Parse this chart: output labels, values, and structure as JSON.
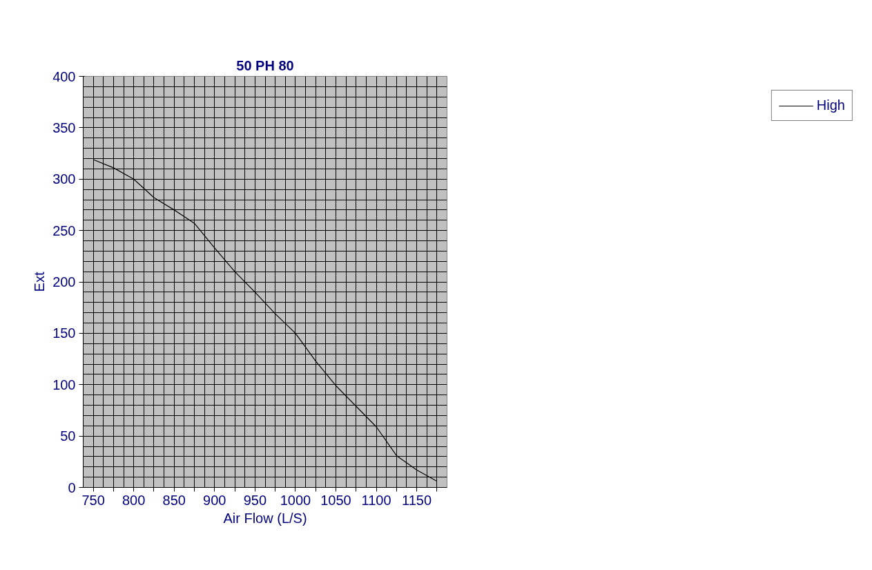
{
  "chart_data": {
    "type": "line",
    "title": "50 PH 80",
    "xlabel": "Air Flow (L/S)",
    "ylabel": "Ext",
    "categories": [
      "750",
      null,
      "800",
      null,
      "850",
      null,
      "900",
      null,
      "950",
      null,
      "1000",
      null,
      "1050",
      null,
      "1100",
      null,
      "1150",
      null
    ],
    "series": [
      {
        "name": "High",
        "color": "#000000",
        "values": [
          319,
          311,
          300,
          282,
          270,
          257,
          233,
          210,
          190,
          169,
          150,
          123,
          99,
          79,
          59,
          31,
          17,
          6
        ]
      }
    ],
    "ylim": [
      0,
      400
    ],
    "yticks": [
      0,
      50,
      100,
      150,
      200,
      250,
      300,
      350,
      400
    ],
    "grid": true,
    "legend": "right",
    "marker": "none",
    "line_style": "solid"
  }
}
